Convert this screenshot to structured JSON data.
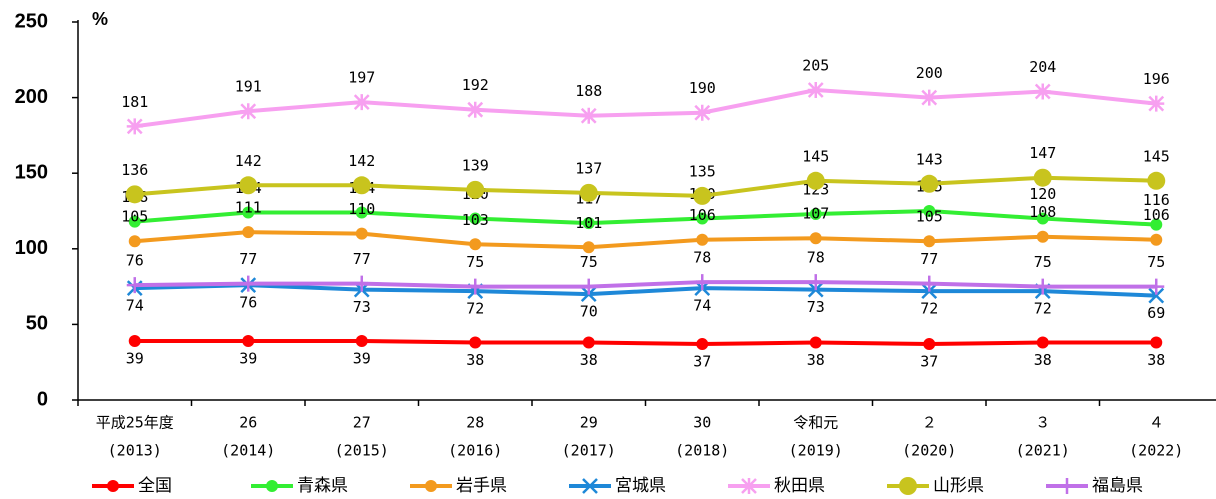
{
  "chart_data": {
    "type": "line",
    "y_unit": "%",
    "categories": [
      [
        "平成25年度",
        "(2013)"
      ],
      [
        "26",
        "(2014)"
      ],
      [
        "27",
        "(2015)"
      ],
      [
        "28",
        "(2016)"
      ],
      [
        "29",
        "(2017)"
      ],
      [
        "30",
        "(2018)"
      ],
      [
        "令和元",
        "(2019)"
      ],
      [
        "２",
        "(2020)"
      ],
      [
        "３",
        "(2021)"
      ],
      [
        "４",
        "(2022)"
      ]
    ],
    "series": [
      {
        "name": "全国",
        "color": "#ff0000",
        "marker": "circle",
        "values": [
          39,
          39,
          39,
          38,
          38,
          37,
          38,
          37,
          38,
          38
        ]
      },
      {
        "name": "青森県",
        "color": "#33ee33",
        "marker": "circle",
        "values": [
          118,
          124,
          124,
          120,
          117,
          120,
          123,
          125,
          120,
          116
        ]
      },
      {
        "name": "岩手県",
        "color": "#f39a1e",
        "marker": "circle",
        "values": [
          105,
          111,
          110,
          103,
          101,
          106,
          107,
          105,
          108,
          106
        ]
      },
      {
        "name": "宮城県",
        "color": "#1e88d8",
        "marker": "x",
        "values": [
          74,
          76,
          73,
          72,
          70,
          74,
          73,
          72,
          72,
          69
        ]
      },
      {
        "name": "秋田県",
        "color": "#f7a0f0",
        "marker": "asterisk",
        "values": [
          181,
          191,
          197,
          192,
          188,
          190,
          205,
          200,
          204,
          196
        ]
      },
      {
        "name": "山形県",
        "color": "#c8c41e",
        "marker": "bigcircle",
        "values": [
          136,
          142,
          142,
          139,
          137,
          135,
          145,
          143,
          147,
          145
        ]
      },
      {
        "name": "福島県",
        "color": "#c070e8",
        "marker": "plus",
        "values": [
          76,
          77,
          77,
          75,
          75,
          78,
          78,
          77,
          75,
          75
        ]
      }
    ],
    "ylim": [
      0,
      250
    ],
    "yticks": [
      0,
      50,
      100,
      150,
      200,
      250
    ],
    "grid": false
  }
}
